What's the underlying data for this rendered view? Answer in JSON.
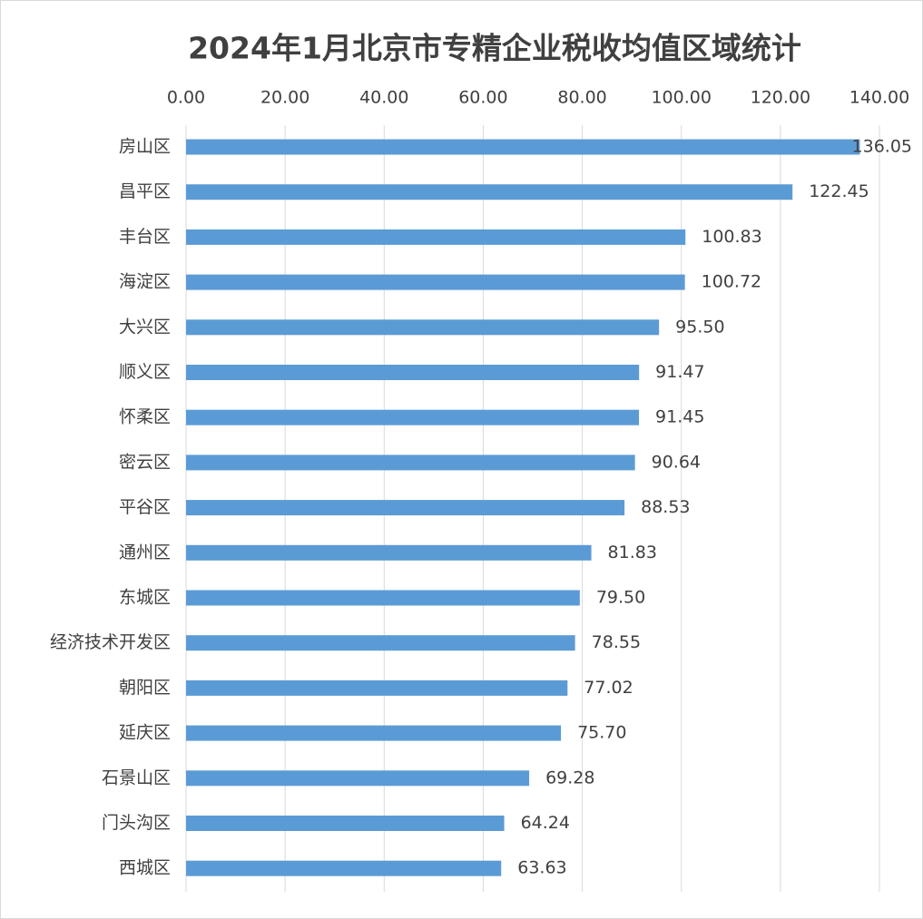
{
  "chart_data": {
    "type": "bar",
    "orientation": "horizontal",
    "title": "2024年1月北京市专精企业税收均值区域统计",
    "categories": [
      "房山区",
      "昌平区",
      "丰台区",
      "海淀区",
      "大兴区",
      "顺义区",
      "怀柔区",
      "密云区",
      "平谷区",
      "通州区",
      "东城区",
      "经济技术开发区",
      "朝阳区",
      "延庆区",
      "石景山区",
      "门头沟区",
      "西城区"
    ],
    "values": [
      136.05,
      122.45,
      100.83,
      100.72,
      95.5,
      91.47,
      91.45,
      90.64,
      88.53,
      81.83,
      79.5,
      78.55,
      77.02,
      75.7,
      69.28,
      64.24,
      63.63
    ],
    "value_labels": [
      "136.05",
      "122.45",
      "100.83",
      "100.72",
      "95.50",
      "91.47",
      "91.45",
      "90.64",
      "88.53",
      "81.83",
      "79.50",
      "78.55",
      "77.02",
      "75.70",
      "69.28",
      "64.24",
      "63.63"
    ],
    "color": "#5b9bd5",
    "xlim": [
      0,
      140
    ],
    "xticks": [
      {
        "value": 0,
        "label": "0.00"
      },
      {
        "value": 20,
        "label": "20.00"
      },
      {
        "value": 40,
        "label": "40.00"
      },
      {
        "value": 60,
        "label": "60.00"
      },
      {
        "value": 80,
        "label": "80.00"
      },
      {
        "value": 100,
        "label": "100.00"
      },
      {
        "value": 120,
        "label": "120.00"
      },
      {
        "value": 140,
        "label": "140.00"
      }
    ],
    "grid": true
  }
}
